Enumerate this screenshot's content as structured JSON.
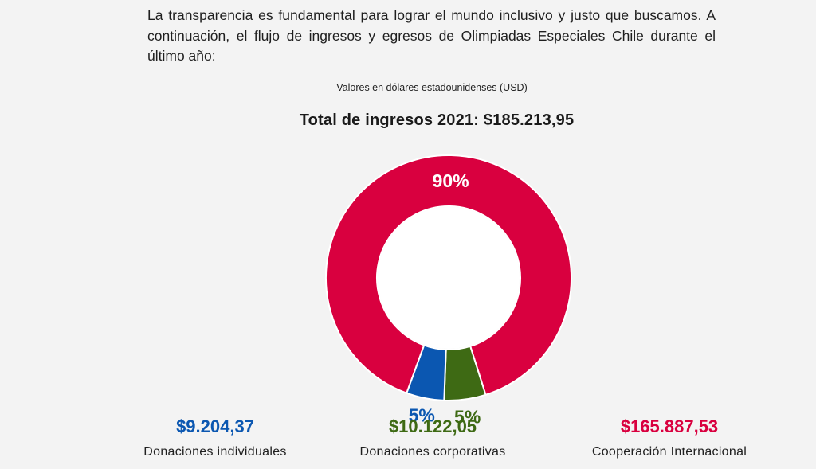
{
  "intro_text": "La transparencia es fundamental para lograr el mundo inclusivo y justo que buscamos. A continuación, el flujo de ingresos y egresos de Olimpiadas Especiales Chile durante el último año:",
  "currency_note": "Valores en dólares estadounidenses (USD)",
  "chart_data": {
    "type": "pie",
    "title": "Total de ingresos 2021: $185.213,95",
    "slices": [
      {
        "name": "Donaciones individuales",
        "amount": "$9.204,37",
        "value": 9204.37,
        "percent_label": "5%",
        "color": "#0b57b1"
      },
      {
        "name": "Donaciones corporativas",
        "amount": "$10.122,05",
        "value": 10122.05,
        "percent_label": "5%",
        "color": "#3e6a14"
      },
      {
        "name": "Cooperación Internacional",
        "amount": "$165.887,53",
        "value": 165887.53,
        "percent_label": "90%",
        "color": "#d9003f"
      }
    ]
  }
}
